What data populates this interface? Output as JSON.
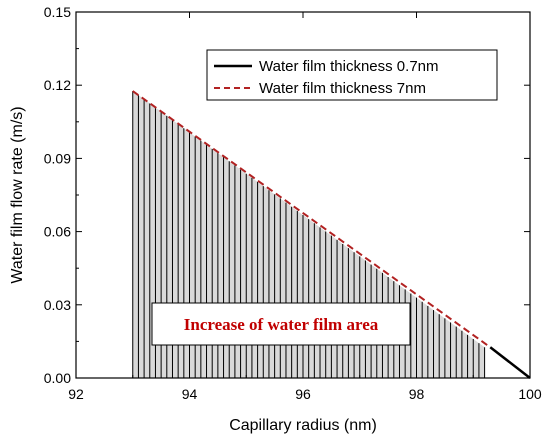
{
  "chart_data": {
    "type": "line",
    "xlabel": "Capillary radius (nm)",
    "ylabel": "Water film flow rate (m/s)",
    "xlim": [
      92,
      100
    ],
    "ylim": [
      0,
      0.15
    ],
    "xticks": [
      "92",
      "94",
      "96",
      "98",
      "100"
    ],
    "yticks": [
      "0.00",
      "0.03",
      "0.06",
      "0.09",
      "0.12",
      "0.15"
    ],
    "series": [
      {
        "name": "Water film thickness 0.7nm",
        "style": "solid",
        "color": "#000000",
        "x": [
          99.3,
          100
        ],
        "y": [
          0.0126,
          0.0
        ]
      },
      {
        "name": "Water film thickness 7nm",
        "style": "dashed",
        "color": "#b22222",
        "x": [
          93,
          99.3
        ],
        "y": [
          0.1176,
          0.0126
        ]
      }
    ],
    "shaded_region": {
      "x": [
        93,
        99.2
      ],
      "y_top": [
        0.1176,
        0.0126
      ],
      "fill": "#d9d9d9",
      "hatch": "vertical"
    },
    "annotation": "Increase of water film area",
    "legend_position": "top-right",
    "grid": false
  }
}
